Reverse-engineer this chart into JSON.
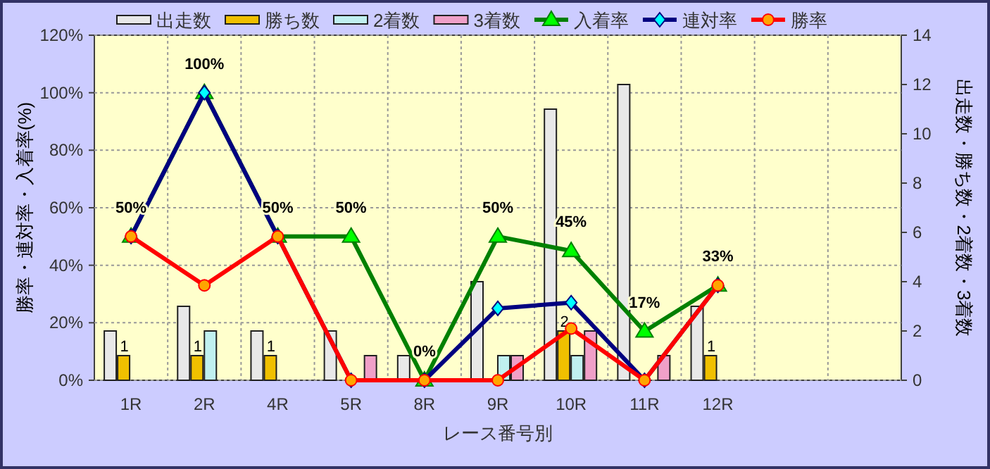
{
  "chart_data": {
    "type": "bar",
    "xlabel": "レース番号別",
    "ylabel": "勝率・連対率・入着率(%)",
    "y2label": "出走数・勝ち数・2着数・3着数",
    "categories": [
      "1R",
      "2R",
      "4R",
      "5R",
      "8R",
      "9R",
      "10R",
      "11R",
      "12R",
      null,
      null
    ],
    "ylim": [
      0,
      120
    ],
    "yticks": [
      {
        "value": 0,
        "label": "0%"
      },
      {
        "value": 20,
        "label": "20%"
      },
      {
        "value": 40,
        "label": "40%"
      },
      {
        "value": 60,
        "label": "60%"
      },
      {
        "value": 80,
        "label": "80%"
      },
      {
        "value": 100,
        "label": "100%"
      },
      {
        "value": 120,
        "label": "120%"
      }
    ],
    "y2lim": [
      0,
      14
    ],
    "y2ticks": [
      0,
      2,
      4,
      6,
      8,
      10,
      12,
      14
    ],
    "grid": true,
    "legend": "top",
    "series": [
      {
        "name": "出走数",
        "axis": "y2",
        "color": "#e8e8e8",
        "values": [
          2,
          3,
          2,
          2,
          1,
          4,
          11,
          12,
          3,
          null,
          null
        ]
      },
      {
        "name": "勝ち数",
        "axis": "y2",
        "color": "#f0c000",
        "values": [
          1,
          1,
          1,
          0,
          0,
          0,
          2,
          0,
          1,
          null,
          null
        ],
        "value_labels": [
          "1",
          "1",
          "1",
          null,
          null,
          null,
          "2",
          null,
          "1",
          null,
          null
        ]
      },
      {
        "name": "2着数",
        "axis": "y2",
        "color": "#c0f0f0",
        "values": [
          0,
          2,
          0,
          0,
          0,
          1,
          1,
          0,
          0,
          null,
          null
        ]
      },
      {
        "name": "3着数",
        "axis": "y2",
        "color": "#f0a0c8",
        "values": [
          0,
          0,
          0,
          1,
          0,
          1,
          2,
          1,
          0,
          null,
          null
        ]
      },
      {
        "name": "入着率",
        "type": "line",
        "color": "#008000",
        "marker": "triangle",
        "values": [
          50,
          100,
          50,
          50,
          0,
          50,
          45,
          17,
          33,
          null,
          null
        ],
        "value_labels": [
          "50%",
          "100%",
          "50%",
          "50%",
          "0%",
          "50%",
          "45%",
          "17%",
          "33%",
          null,
          null
        ]
      },
      {
        "name": "連対率",
        "type": "line",
        "color": "#000080",
        "marker": "diamond",
        "values": [
          50,
          100,
          50,
          0,
          0,
          25,
          27,
          0,
          33,
          null,
          null
        ]
      },
      {
        "name": "勝率",
        "type": "line",
        "color": "#ff0000",
        "marker": "circle",
        "values": [
          50,
          33,
          50,
          0,
          0,
          0,
          18,
          0,
          33,
          null,
          null
        ]
      }
    ]
  }
}
